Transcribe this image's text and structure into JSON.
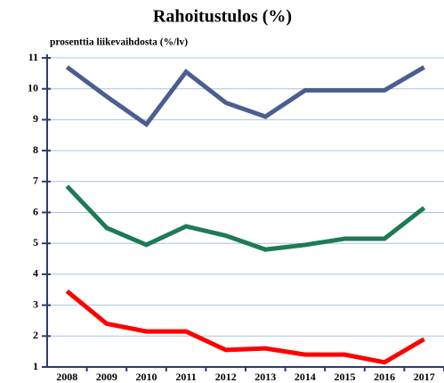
{
  "chart_data": {
    "type": "line",
    "title": "Rahoitustulos (%)",
    "subtitle": "prosenttia liikevaihdosta (%/lv)",
    "categories": [
      "2008",
      "2009",
      "2010",
      "2011",
      "2012",
      "2013",
      "2014",
      "2015",
      "2016",
      "2017"
    ],
    "series": [
      {
        "color": "#4a5f8f",
        "values": [
          10.7,
          9.75,
          8.85,
          10.55,
          9.55,
          9.1,
          9.95,
          9.95,
          9.95,
          10.7
        ]
      },
      {
        "color": "#1e7a55",
        "values": [
          6.85,
          5.5,
          4.95,
          5.55,
          5.25,
          4.8,
          4.95,
          5.15,
          5.15,
          6.15
        ]
      },
      {
        "color": "#ff0000",
        "values": [
          3.45,
          2.4,
          2.15,
          2.15,
          1.55,
          1.6,
          1.4,
          1.4,
          1.15,
          1.9
        ]
      }
    ],
    "ylim": [
      1,
      11
    ],
    "yticks": [
      1,
      2,
      3,
      4,
      5,
      6,
      7,
      8,
      9,
      10,
      11
    ],
    "grid": true
  }
}
